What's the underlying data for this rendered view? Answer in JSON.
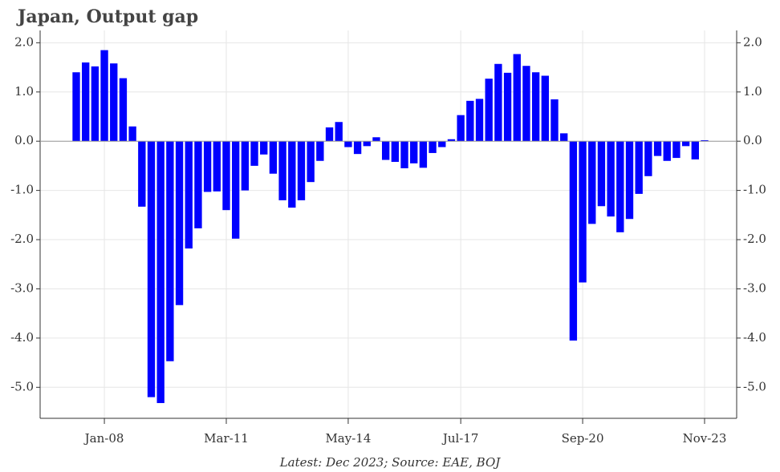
{
  "chart_data": {
    "type": "bar",
    "title": "Japan, Output gap",
    "footnote": "Latest: Dec 2023; Source: EAE, BOJ",
    "color": "#0000ff",
    "grid": true,
    "categories": [
      null,
      null,
      null,
      "Jan-08",
      null,
      null,
      null,
      null,
      null,
      null,
      null,
      null,
      null,
      null,
      null,
      null,
      "Mar-11",
      null,
      null,
      null,
      null,
      null,
      null,
      null,
      null,
      null,
      null,
      null,
      null,
      "May-14",
      null,
      null,
      null,
      null,
      null,
      null,
      null,
      null,
      null,
      null,
      null,
      "Jul-17",
      null,
      null,
      null,
      null,
      null,
      null,
      null,
      null,
      null,
      null,
      null,
      null,
      "Sep-20",
      null,
      null,
      null,
      null,
      null,
      null,
      null,
      null,
      null,
      null,
      null,
      null,
      "Nov-23"
    ],
    "values": [
      1.4,
      1.6,
      1.52,
      1.85,
      1.58,
      1.28,
      0.3,
      -1.33,
      -5.2,
      -5.32,
      -4.47,
      -3.33,
      -2.18,
      -1.77,
      -1.03,
      -1.02,
      -1.4,
      -1.98,
      -1.0,
      -0.5,
      -0.27,
      -0.66,
      -1.2,
      -1.35,
      -1.2,
      -0.83,
      -0.4,
      0.28,
      0.39,
      -0.12,
      -0.26,
      -0.1,
      0.08,
      -0.38,
      -0.42,
      -0.55,
      -0.45,
      -0.54,
      -0.24,
      -0.12,
      0.04,
      0.53,
      0.82,
      0.86,
      1.27,
      1.57,
      1.39,
      1.77,
      1.53,
      1.4,
      1.33,
      0.85,
      0.16,
      -4.05,
      -2.87,
      -1.68,
      -1.32,
      -1.53,
      -1.85,
      -1.58,
      -1.07,
      -0.71,
      -0.3,
      -0.4,
      -0.34,
      -0.1,
      -0.37,
      0.02
    ],
    "ylim": [
      -5.63,
      2.25
    ],
    "yticks": [
      {
        "value": 2,
        "label": "2.0"
      },
      {
        "value": 1,
        "label": "1.0"
      },
      {
        "value": 0,
        "label": "0.0"
      },
      {
        "value": -1,
        "label": "-1.0"
      },
      {
        "value": -2,
        "label": "-2.0"
      },
      {
        "value": -3,
        "label": "-3.0"
      },
      {
        "value": -4,
        "label": "-4.0"
      },
      {
        "value": -5,
        "label": "-5.0"
      }
    ]
  }
}
